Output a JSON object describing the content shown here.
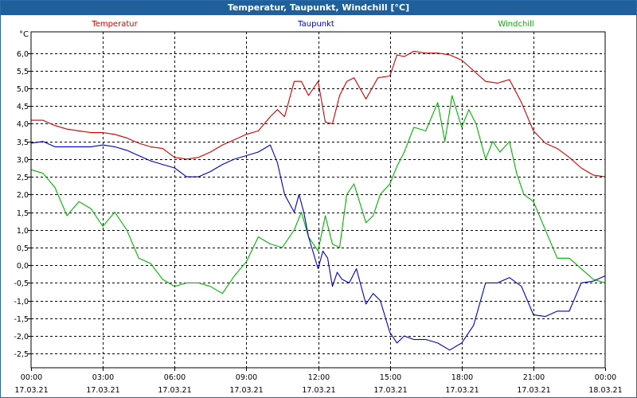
{
  "chart_data": {
    "type": "line",
    "title": "Temperatur, Taupunkt, Windchill [°C]",
    "ylabel": "°C",
    "ylim": [
      -2.9,
      6.6
    ],
    "yticks": [
      6.0,
      5.5,
      5.0,
      4.5,
      4.0,
      3.5,
      3.0,
      2.5,
      2.0,
      1.5,
      1.0,
      0.5,
      0.0,
      -0.5,
      -1.0,
      -1.5,
      -2.0,
      -2.5
    ],
    "ytick_labels": [
      "6,0",
      "5,5",
      "5,0",
      "4,5",
      "4,0",
      "3,5",
      "3,0",
      "2,5",
      "2,0",
      "1,5",
      "1,0",
      "0,5",
      "0,0",
      "-0,5",
      "-1,0",
      "-1,5",
      "-2,0",
      "-2,5"
    ],
    "xlim": [
      0,
      24
    ],
    "x_ticks": [
      {
        "hour": 0,
        "time": "00:00",
        "date": "17.03.21"
      },
      {
        "hour": 3,
        "time": "03:00",
        "date": "17.03.21"
      },
      {
        "hour": 6,
        "time": "06:00",
        "date": "17.03.21"
      },
      {
        "hour": 9,
        "time": "09:00",
        "date": "17.03.21"
      },
      {
        "hour": 12,
        "time": "12:00",
        "date": "17.03.21"
      },
      {
        "hour": 15,
        "time": "15:00",
        "date": "17.03.21"
      },
      {
        "hour": 18,
        "time": "18:00",
        "date": "17.03.21"
      },
      {
        "hour": 21,
        "time": "21:00",
        "date": "17.03.21"
      },
      {
        "hour": 24,
        "time": "00:00",
        "date": "18.03.21"
      }
    ],
    "grid": true,
    "series": [
      {
        "name": "Temperatur",
        "color": "#d40000",
        "x": [
          0,
          0.5,
          1,
          1.5,
          2,
          2.5,
          3,
          3.5,
          4,
          4.5,
          5,
          5.5,
          6,
          6.5,
          7,
          7.5,
          8,
          8.5,
          9,
          9.5,
          10,
          10.3,
          10.6,
          11,
          11.3,
          11.6,
          12,
          12.3,
          12.6,
          12.9,
          13.2,
          13.5,
          14,
          14.5,
          15,
          15.3,
          15.6,
          16,
          16.5,
          17,
          17.5,
          18,
          18.5,
          19,
          19.5,
          20,
          20.5,
          21,
          21.5,
          22,
          22.5,
          23,
          23.5,
          24
        ],
        "values": [
          4.1,
          4.1,
          3.95,
          3.85,
          3.8,
          3.75,
          3.75,
          3.7,
          3.6,
          3.45,
          3.35,
          3.3,
          3.05,
          3.0,
          3.05,
          3.2,
          3.4,
          3.55,
          3.7,
          3.8,
          4.2,
          4.4,
          4.2,
          5.2,
          5.2,
          4.8,
          5.2,
          4.05,
          4.0,
          4.8,
          5.2,
          5.3,
          4.7,
          5.3,
          5.35,
          5.95,
          5.9,
          6.05,
          6.0,
          6.0,
          5.95,
          5.8,
          5.5,
          5.2,
          5.15,
          5.25,
          4.6,
          3.8,
          3.45,
          3.3,
          3.05,
          2.75,
          2.55,
          2.5
        ]
      },
      {
        "name": "Taupunkt",
        "color": "#0000c8",
        "x": [
          0,
          0.5,
          1,
          1.5,
          2,
          2.5,
          3,
          3.5,
          4,
          4.5,
          5,
          5.5,
          6,
          6.5,
          7,
          7.5,
          8,
          8.5,
          9,
          9.5,
          10,
          10.3,
          10.6,
          11,
          11.2,
          11.4,
          11.6,
          12,
          12.2,
          12.4,
          12.6,
          12.8,
          13,
          13.3,
          13.6,
          14,
          14.3,
          14.6,
          15,
          15.3,
          15.6,
          16,
          16.5,
          17,
          17.5,
          18,
          18.5,
          19,
          19.5,
          20,
          20.5,
          21,
          21.5,
          22,
          22.5,
          23,
          23.5,
          24
        ],
        "values": [
          3.45,
          3.5,
          3.35,
          3.35,
          3.35,
          3.35,
          3.4,
          3.35,
          3.25,
          3.1,
          2.95,
          2.85,
          2.75,
          2.5,
          2.5,
          2.65,
          2.85,
          3.0,
          3.1,
          3.2,
          3.4,
          2.9,
          2.0,
          1.5,
          2.0,
          1.5,
          0.8,
          -0.1,
          0.4,
          0.2,
          -0.6,
          -0.2,
          -0.4,
          -0.5,
          -0.1,
          -1.1,
          -0.8,
          -1.0,
          -1.9,
          -2.2,
          -2.0,
          -2.1,
          -2.1,
          -2.2,
          -2.4,
          -2.2,
          -1.7,
          -0.5,
          -0.5,
          -0.35,
          -0.6,
          -1.4,
          -1.45,
          -1.3,
          -1.3,
          -0.5,
          -0.45,
          -0.3
        ]
      },
      {
        "name": "Windchill",
        "color": "#00b400",
        "x": [
          0,
          0.5,
          1,
          1.5,
          2,
          2.5,
          3,
          3.5,
          4,
          4.5,
          5,
          5.5,
          6,
          6.5,
          7,
          7.5,
          8,
          8.5,
          9,
          9.5,
          10,
          10.5,
          11,
          11.3,
          11.6,
          12,
          12.3,
          12.6,
          12.9,
          13.2,
          13.5,
          14,
          14.3,
          14.6,
          15,
          15.3,
          15.6,
          16,
          16.5,
          17,
          17.3,
          17.6,
          18,
          18.3,
          18.6,
          19,
          19.3,
          19.6,
          20,
          20.3,
          20.6,
          21,
          21.5,
          22,
          22.5,
          23,
          23.5,
          24
        ],
        "values": [
          2.7,
          2.6,
          2.2,
          1.4,
          1.8,
          1.6,
          1.1,
          1.5,
          1.0,
          0.2,
          0.05,
          -0.4,
          -0.6,
          -0.5,
          -0.5,
          -0.6,
          -0.8,
          -0.3,
          0.1,
          0.8,
          0.6,
          0.5,
          1.0,
          1.5,
          0.8,
          0.4,
          1.4,
          0.6,
          0.5,
          2.0,
          2.3,
          1.2,
          1.4,
          2.0,
          2.3,
          2.8,
          3.2,
          3.9,
          3.8,
          4.6,
          3.5,
          4.8,
          3.9,
          4.4,
          4.0,
          3.0,
          3.5,
          3.2,
          3.5,
          2.6,
          2.0,
          1.8,
          1.0,
          0.2,
          0.2,
          -0.1,
          -0.4,
          -0.5
        ]
      }
    ]
  }
}
